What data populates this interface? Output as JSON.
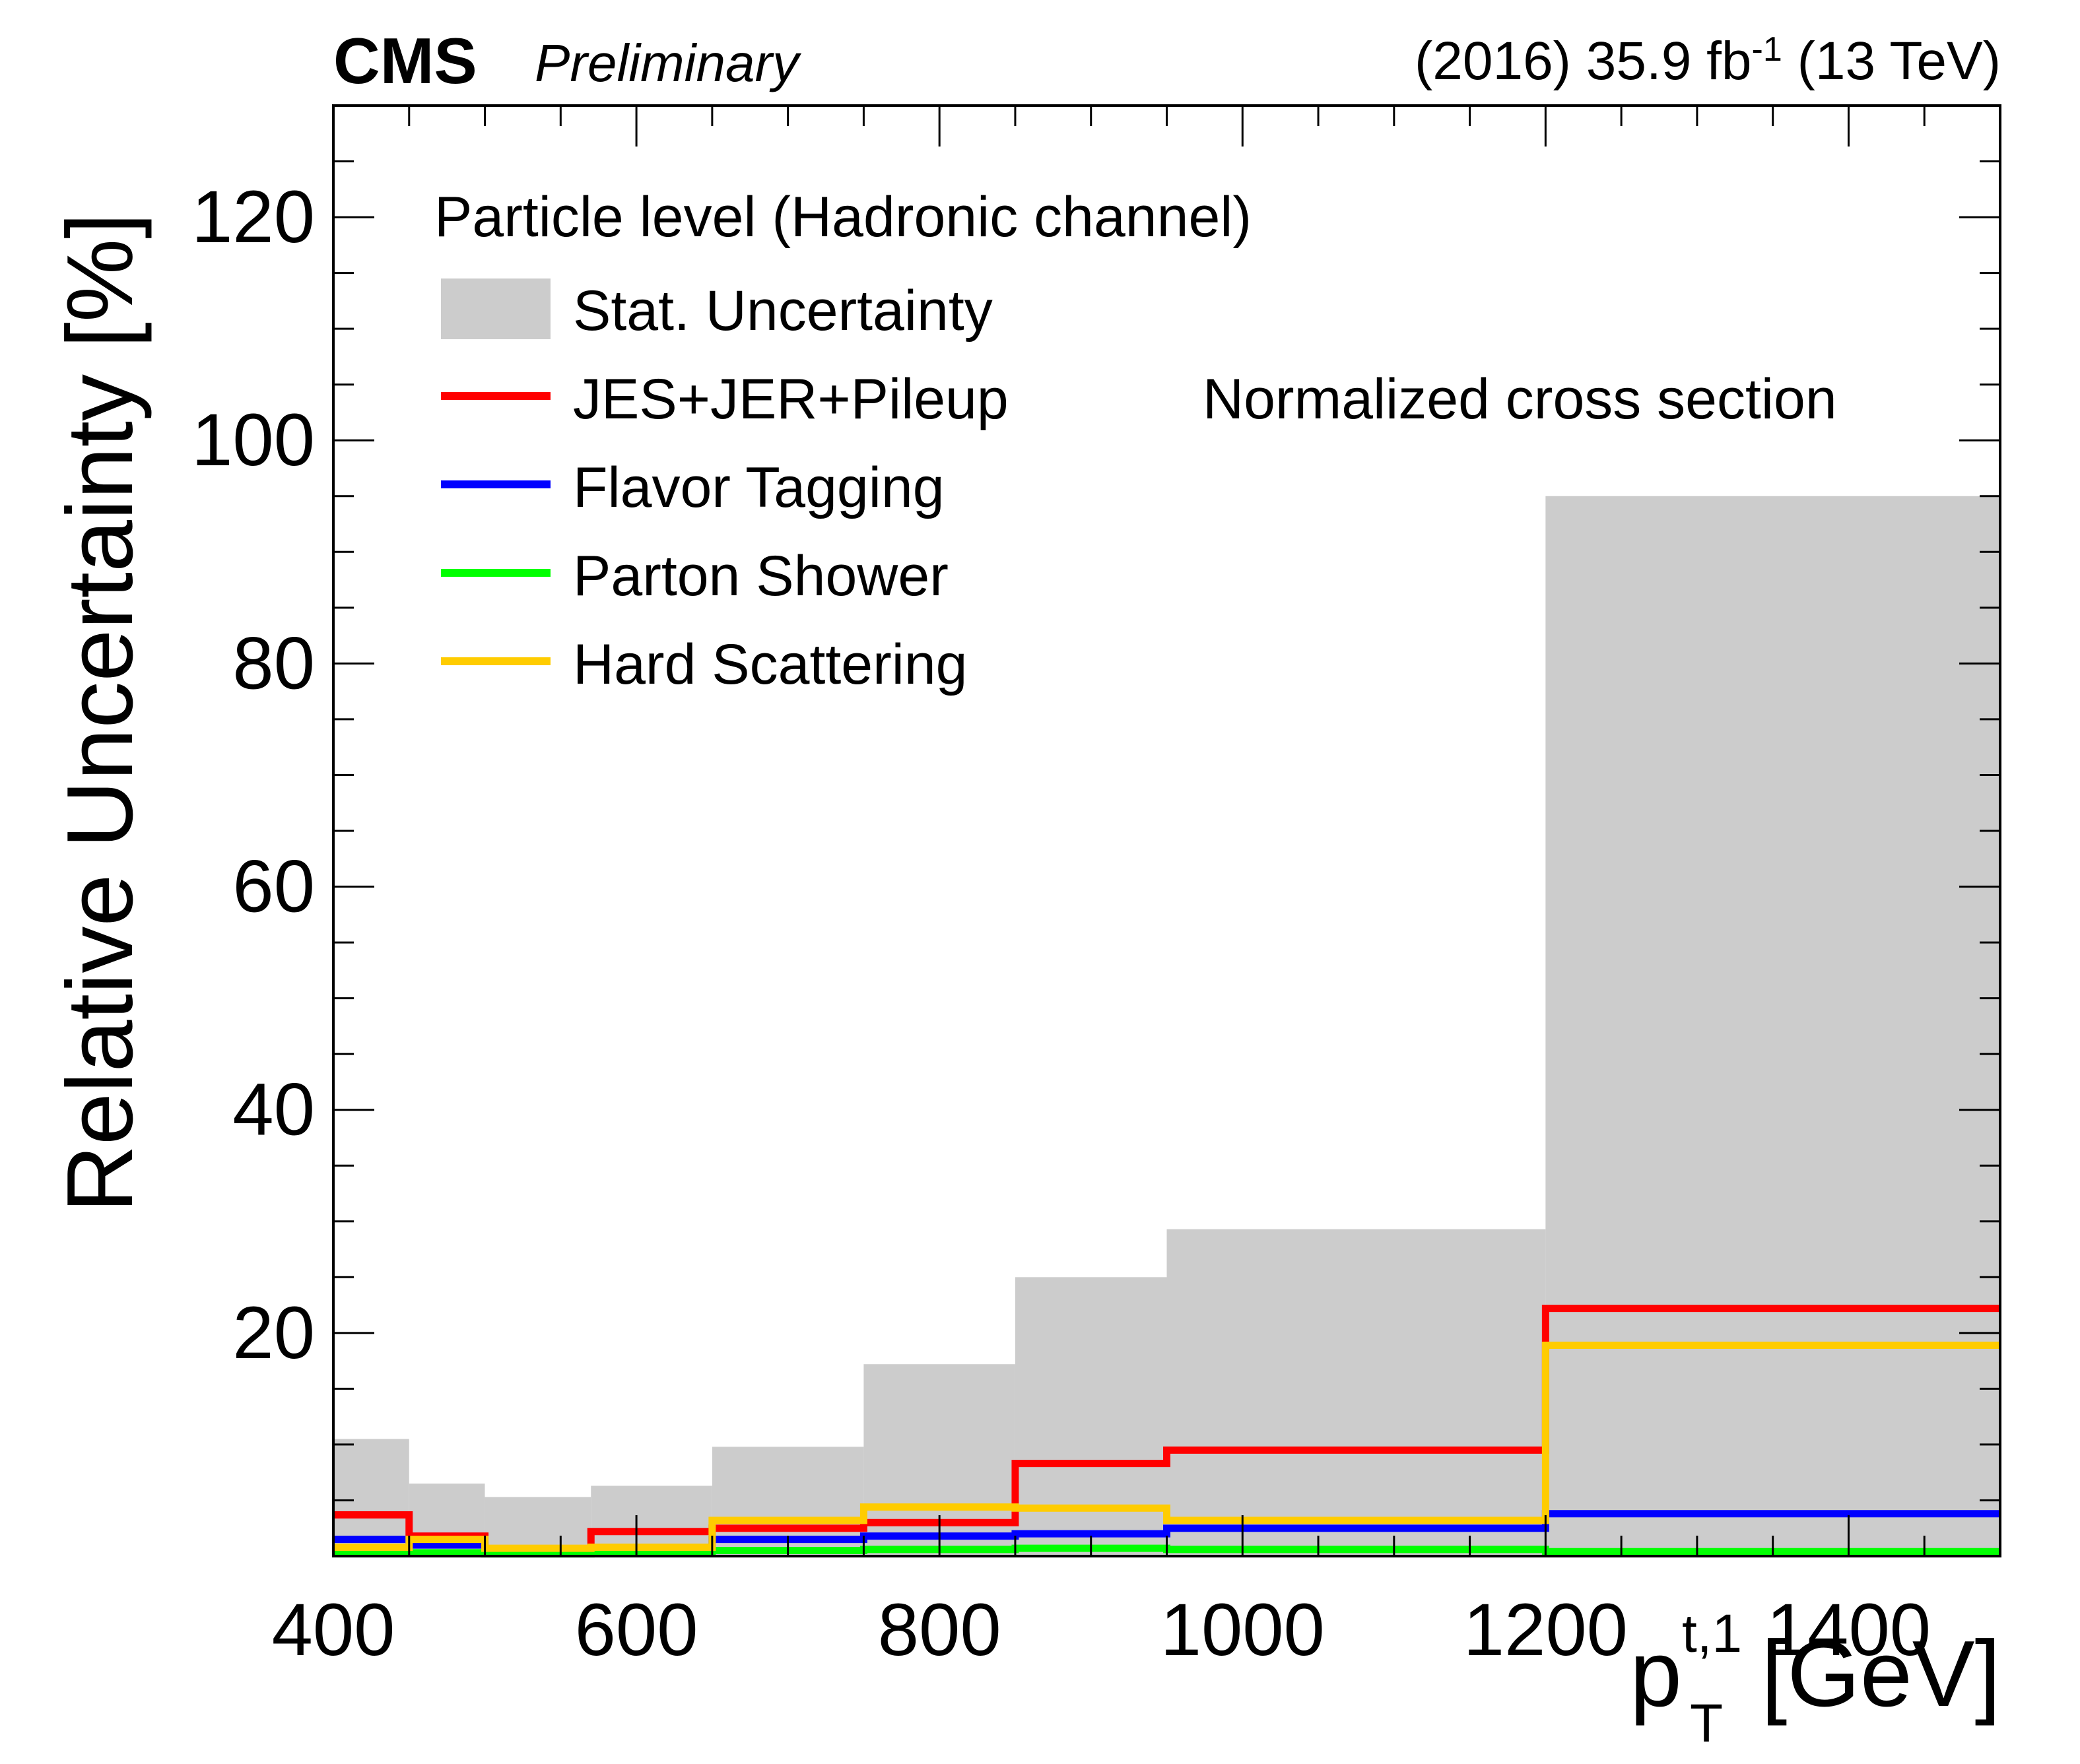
{
  "header": {
    "experiment": "CMS",
    "status": "Preliminary",
    "lumi_prefix": "(2016) 35.9 fb",
    "lumi_exponent": "-1",
    "lumi_suffix": "(13 TeV)"
  },
  "legend": {
    "title": "Particle level (Hadronic channel)",
    "entries": [
      {
        "label": "Stat. Uncertainty",
        "style": "fill",
        "color": "#cccccc"
      },
      {
        "label": "JES+JER+Pileup",
        "style": "line",
        "color": "#ff0000"
      },
      {
        "label": "Flavor Tagging",
        "style": "line",
        "color": "#0000ff"
      },
      {
        "label": "Parton Shower",
        "style": "line",
        "color": "#00ff00"
      },
      {
        "label": "Hard Scattering",
        "style": "line",
        "color": "#ffcc00"
      }
    ]
  },
  "annotation": "Normalized cross section",
  "axes": {
    "ylabel": "Relative Uncertainty [%]",
    "xlabel_var": "p",
    "xlabel_sup": "t,1",
    "xlabel_sub": "T",
    "xlabel_unit": "[GeV]"
  },
  "chart_data": {
    "type": "histogram",
    "title": "",
    "xlabel": "p_T^{t,1} [GeV]",
    "ylabel": "Relative Uncertainty [%]",
    "xlim": [
      400,
      1500
    ],
    "ylim": [
      0,
      130
    ],
    "x_ticks": [
      400,
      600,
      800,
      1000,
      1200,
      1400
    ],
    "y_ticks": [
      20,
      40,
      60,
      80,
      100,
      120
    ],
    "bin_edges": [
      400,
      450,
      500,
      570,
      650,
      750,
      850,
      950,
      1200,
      1500
    ],
    "series": [
      {
        "name": "Stat. Uncertainty",
        "style": "fill",
        "color": "#cccccc",
        "values": [
          10.5,
          6.5,
          5.3,
          6.3,
          9.8,
          17.2,
          25.0,
          29.3,
          95.0
        ]
      },
      {
        "name": "JES+JER+Pileup",
        "style": "line",
        "color": "#ff0000",
        "values": [
          3.7,
          1.8,
          0.5,
          2.2,
          2.5,
          3.0,
          8.3,
          9.5,
          22.2
        ]
      },
      {
        "name": "Flavor Tagging",
        "style": "line",
        "color": "#0000ff",
        "values": [
          1.5,
          1.0,
          0.3,
          0.6,
          1.5,
          1.8,
          2.0,
          2.5,
          3.8
        ]
      },
      {
        "name": "Parton Shower",
        "style": "line",
        "color": "#00ff00",
        "values": [
          0.3,
          0.3,
          0.2,
          0.3,
          0.5,
          0.6,
          0.7,
          0.6,
          0.4
        ]
      },
      {
        "name": "Hard Scattering",
        "style": "line",
        "color": "#ffcc00",
        "values": [
          0.8,
          1.5,
          0.7,
          0.8,
          3.2,
          4.4,
          4.3,
          3.2,
          18.9
        ]
      }
    ]
  }
}
